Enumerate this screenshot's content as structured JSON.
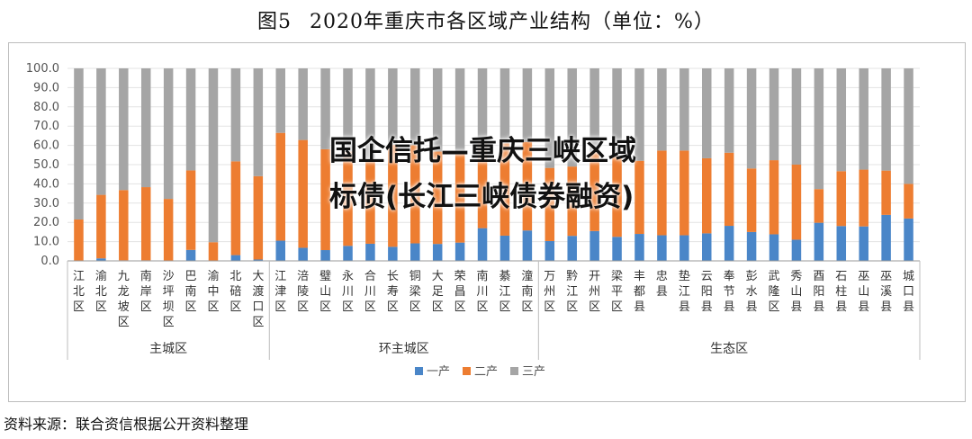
{
  "figure": {
    "number": "图5",
    "title": "2020年重庆市各区域产业结构（单位：%）"
  },
  "watermark": "国企信托—重庆三峡区域标债(长江三峡债券融资)",
  "source": "资料来源：联合资信根据公开资料整理",
  "colors": {
    "primary": "#4a86c8",
    "secondary": "#ed7d31",
    "tertiary": "#a5a5a5"
  },
  "chart_data": {
    "type": "bar",
    "stacked": true,
    "ylim": [
      0,
      100
    ],
    "yticks": [
      "0.0",
      "10.0",
      "20.0",
      "30.0",
      "40.0",
      "50.0",
      "60.0",
      "70.0",
      "80.0",
      "90.0",
      "100.0"
    ],
    "categories": [
      "江北区",
      "渝北区",
      "九龙坡区",
      "南岸区",
      "沙坪坝区",
      "巴南区",
      "渝中区",
      "北碚区",
      "大渡口区",
      "江津区",
      "涪陵区",
      "璧山区",
      "永川区",
      "合川区",
      "长寿区",
      "铜梁区",
      "大足区",
      "荣昌区",
      "南川区",
      "綦江区",
      "潼南区",
      "万州区",
      "黔江区",
      "开州区",
      "梁平区",
      "丰都县",
      "忠县",
      "垫江县",
      "云阳县",
      "奉节县",
      "彭水县",
      "武隆区",
      "秀山县",
      "酉阳县",
      "石柱县",
      "巫山县",
      "巫溪县",
      "城口县"
    ],
    "groups": [
      {
        "name": "主城区",
        "count": 9
      },
      {
        "name": "环主城区",
        "count": 12
      },
      {
        "name": "生态区",
        "count": 17
      }
    ],
    "series": [
      {
        "name": "一产",
        "values": [
          0.2,
          1.3,
          0.3,
          0.3,
          0.2,
          5.7,
          0.0,
          3.0,
          0.7,
          10.5,
          6.8,
          5.6,
          7.8,
          8.9,
          7.3,
          9.1,
          8.8,
          9.5,
          17.0,
          13.1,
          15.8,
          10.3,
          13.0,
          15.5,
          12.5,
          14.0,
          13.3,
          13.3,
          14.3,
          18.2,
          15.0,
          13.8,
          11.0,
          19.8,
          18.1,
          17.9,
          23.9,
          22.0
        ]
      },
      {
        "name": "二产",
        "values": [
          21.3,
          33.0,
          36.5,
          38.0,
          32.0,
          41.3,
          9.7,
          48.7,
          43.3,
          56.0,
          56.0,
          52.4,
          49.0,
          44.0,
          53.0,
          51.0,
          48.0,
          46.0,
          44.0,
          48.0,
          46.0,
          38.0,
          36.0,
          41.0,
          42.0,
          38.0,
          44.0,
          44.0,
          39.0,
          38.0,
          33.0,
          38.5,
          39.0,
          17.5,
          28.5,
          29.5,
          23.0,
          18.0
        ]
      },
      {
        "name": "三产",
        "values": [
          78.5,
          65.7,
          63.2,
          61.7,
          67.8,
          53.0,
          90.3,
          48.3,
          56.0,
          33.5,
          37.2,
          42.0,
          43.2,
          47.1,
          39.7,
          39.9,
          43.2,
          44.5,
          39.0,
          38.9,
          38.2,
          51.7,
          51.0,
          43.5,
          45.5,
          48.0,
          42.7,
          42.7,
          46.7,
          43.8,
          52.0,
          47.7,
          50.0,
          62.7,
          53.4,
          52.6,
          53.1,
          60.0
        ]
      }
    ]
  }
}
